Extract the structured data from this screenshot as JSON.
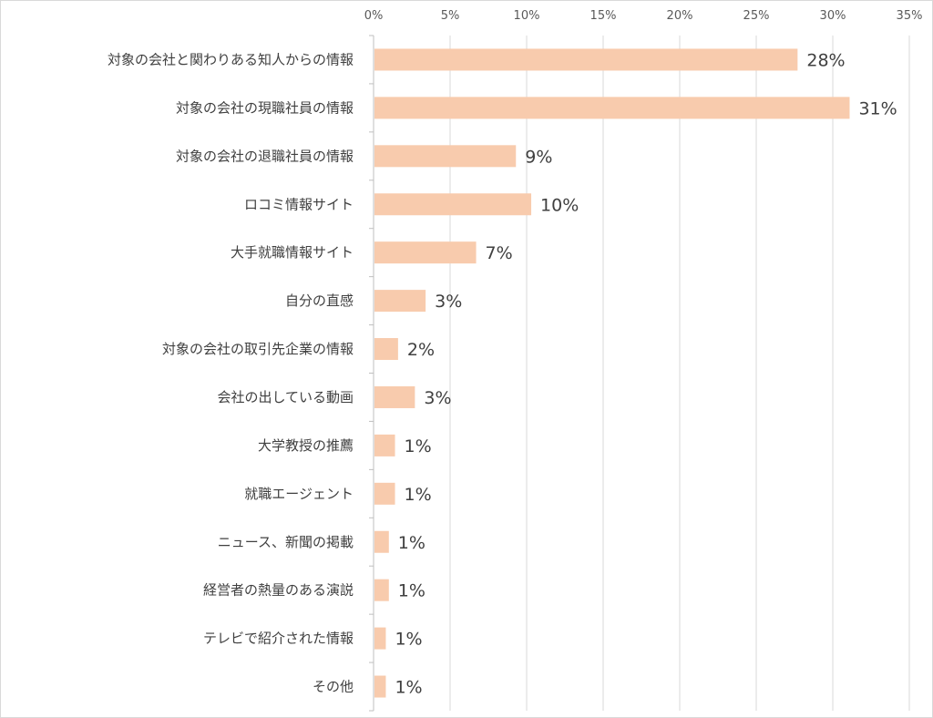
{
  "chart_data": {
    "type": "bar",
    "orientation": "horizontal",
    "categories": [
      "対象の会社と関わりある知人からの情報",
      "対象の会社の現職社員の情報",
      "対象の会社の退職社員の情報",
      "ロコミ情報サイト",
      "大手就職情報サイト",
      "自分の直感",
      "対象の会社の取引先企業の情報",
      "会社の出している動画",
      "大学教授の推薦",
      "就職エージェント",
      "ニュース、新聞の掲載",
      "経営者の熱量のある演説",
      "テレビで紹介された情報",
      "その他"
    ],
    "values": [
      27.7,
      31.1,
      9.3,
      10.3,
      6.7,
      3.4,
      1.6,
      2.7,
      1.4,
      1.4,
      1.0,
      1.0,
      0.8,
      0.8
    ],
    "data_labels": [
      "28%",
      "31%",
      "9%",
      "10%",
      "7%",
      "3%",
      "2%",
      "3%",
      "1%",
      "1%",
      "1%",
      "1%",
      "1%",
      "1%"
    ],
    "xlim": [
      0,
      35
    ],
    "x_ticks": [
      0,
      5,
      10,
      15,
      20,
      25,
      30,
      35
    ],
    "x_tick_labels": [
      "0%",
      "5%",
      "10%",
      "15%",
      "20%",
      "25%",
      "30%",
      "35%"
    ],
    "axis_position": "top",
    "grid": true,
    "title": "",
    "xlabel": "",
    "ylabel": "",
    "colors": {
      "bar": "#f8cbad",
      "gridline": "#d9d9d9",
      "axis_line": "#bfbfbf",
      "label_text": "#404040",
      "tick_text": "#595959"
    }
  }
}
